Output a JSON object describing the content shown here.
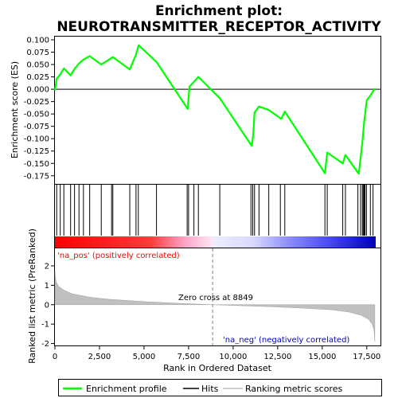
{
  "chart_data": {
    "type": "line",
    "title": "Enrichment plot: NEUROTRANSMITTER_RECEPTOR_ACTIVITY",
    "es_panel": {
      "ylabel": "Enrichment score (ES)",
      "ylim": [
        -0.185,
        0.1
      ],
      "yticks": [
        0.1,
        0.075,
        0.05,
        0.025,
        0.0,
        -0.025,
        -0.05,
        -0.075,
        -0.1,
        -0.125,
        -0.15,
        -0.175
      ],
      "ytick_labels": [
        "0.100",
        "0.075",
        "0.050",
        "0.025",
        "0.000",
        "-0.025",
        "-0.050",
        "-0.075",
        "-0.100",
        "-0.125",
        "-0.150",
        "-0.175"
      ],
      "series": [
        {
          "name": "Enrichment profile",
          "color": "#00ff00",
          "x": [
            0,
            100,
            300,
            500,
            880,
            1100,
            1350,
            1600,
            1950,
            2600,
            3250,
            4200,
            4550,
            4700,
            5700,
            7450,
            7550,
            7850,
            8050,
            9250,
            11050,
            11130,
            11200,
            11450,
            12000,
            12700,
            12900,
            15150,
            15280,
            16150,
            16300,
            17050,
            17250,
            17350,
            17500,
            17700,
            17950
          ],
          "y": [
            -0.002,
            0.021,
            0.03,
            0.042,
            0.028,
            0.041,
            0.052,
            0.06,
            0.067,
            0.05,
            0.065,
            0.04,
            0.07,
            0.089,
            0.055,
            -0.04,
            0.005,
            0.017,
            0.025,
            -0.018,
            -0.115,
            -0.09,
            -0.047,
            -0.035,
            -0.042,
            -0.06,
            -0.045,
            -0.17,
            -0.128,
            -0.15,
            -0.133,
            -0.171,
            -0.108,
            -0.067,
            -0.022,
            -0.013,
            0.002
          ]
        }
      ]
    },
    "hits_panel": {
      "legend_label": "Hits",
      "hit_positions": [
        100,
        300,
        500,
        880,
        1100,
        1350,
        1600,
        1950,
        2600,
        3180,
        3250,
        4200,
        4550,
        4680,
        5700,
        7420,
        7500,
        7800,
        8050,
        9250,
        11000,
        11100,
        11200,
        11450,
        12000,
        12650,
        12900,
        15150,
        15280,
        16150,
        16300,
        17000,
        17150,
        17250,
        17300,
        17350,
        17400,
        17480,
        17700,
        17850
      ]
    },
    "rank_panel": {
      "ylabel": "Ranked list metric (PreRanked)",
      "xlabel": "Rank in Ordered Dataset",
      "xlim": [
        0,
        18000
      ],
      "ylim": [
        -2.1,
        2.9
      ],
      "xticks": [
        0,
        2500,
        5000,
        7500,
        10000,
        12500,
        15000,
        17500
      ],
      "xtick_labels": [
        "0",
        "2,500",
        "5,000",
        "7,500",
        "10,000",
        "12,500",
        "15,000",
        "17,500"
      ],
      "yticks": [
        2,
        1,
        0,
        -1,
        -2
      ],
      "ytick_labels": [
        "2",
        "1",
        "0",
        "-1",
        "-2"
      ],
      "zero_cross": 8849,
      "zero_cross_label": "Zero cross at 8849",
      "pos_label": "'na_pos' (positively correlated)",
      "neg_label": "'na_neg' (negatively correlated)",
      "metric_x": [
        0,
        60,
        200,
        500,
        1000,
        2000,
        3000,
        5000,
        7000,
        8849,
        10000,
        12000,
        14000,
        15500,
        16500,
        17200,
        17600,
        17800,
        17900,
        17950
      ],
      "metric_y": [
        1.7,
        1.2,
        0.95,
        0.75,
        0.55,
        0.38,
        0.28,
        0.16,
        0.07,
        0.0,
        -0.04,
        -0.1,
        -0.18,
        -0.26,
        -0.38,
        -0.55,
        -0.75,
        -1.0,
        -1.3,
        -1.9
      ]
    },
    "legend": {
      "entries": [
        "Enrichment profile",
        "Hits",
        "Ranking metric scores"
      ],
      "placement": "bottom"
    },
    "colors": {
      "profile": "#00ff00",
      "hits": "#000000",
      "metric_fill": "#c0c0c0",
      "pos_label": "#ff0000",
      "neg_label": "#0000cc",
      "zero_line": "#808080"
    }
  }
}
